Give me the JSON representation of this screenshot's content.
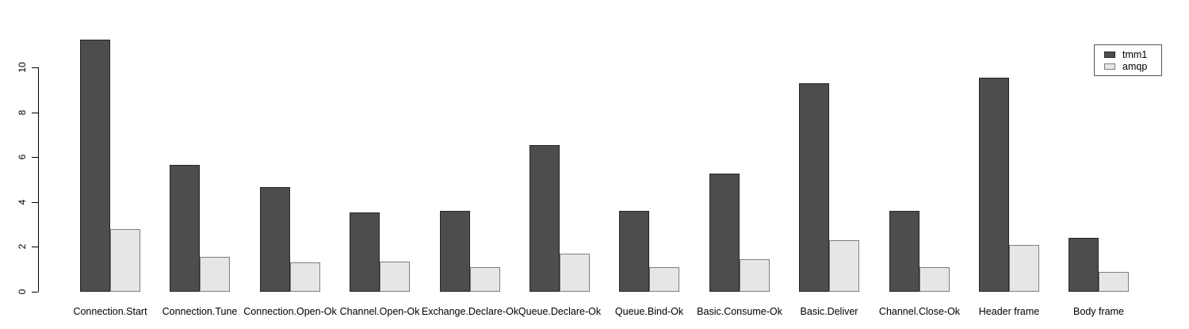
{
  "chart_data": {
    "type": "bar",
    "title": "",
    "xlabel": "",
    "ylabel": "",
    "categories": [
      "Connection.Start",
      "Connection.Tune",
      "Connection.Open-Ok",
      "Channel.Open-Ok",
      "Exchange.Declare-Ok",
      "Queue.Declare-Ok",
      "Queue.Bind-Ok",
      "Basic.Consume-Ok",
      "Basic.Deliver",
      "Channel.Close-Ok",
      "Header frame",
      "Body frame"
    ],
    "series": [
      {
        "name": "tmm1",
        "color": "#4D4D4D",
        "border": "#262626",
        "values": [
          11.25,
          5.65,
          4.65,
          3.55,
          3.6,
          6.55,
          3.6,
          5.25,
          9.3,
          3.6,
          9.55,
          2.4
        ]
      },
      {
        "name": "amqp",
        "color": "#E6E6E6",
        "border": "#7d7d7d",
        "values": [
          2.8,
          1.55,
          1.3,
          1.35,
          1.1,
          1.7,
          1.1,
          1.45,
          2.3,
          1.1,
          2.1,
          0.9
        ]
      }
    ],
    "yticks": [
      0,
      2,
      4,
      6,
      8,
      10
    ],
    "ytick_labels": [
      "0",
      "2",
      "4",
      "6",
      "8",
      "10"
    ],
    "ylim": [
      0,
      11.5
    ],
    "grid": false,
    "legend_position": "top-right",
    "axis_color": "#000000",
    "background_color": "#ffffff"
  }
}
